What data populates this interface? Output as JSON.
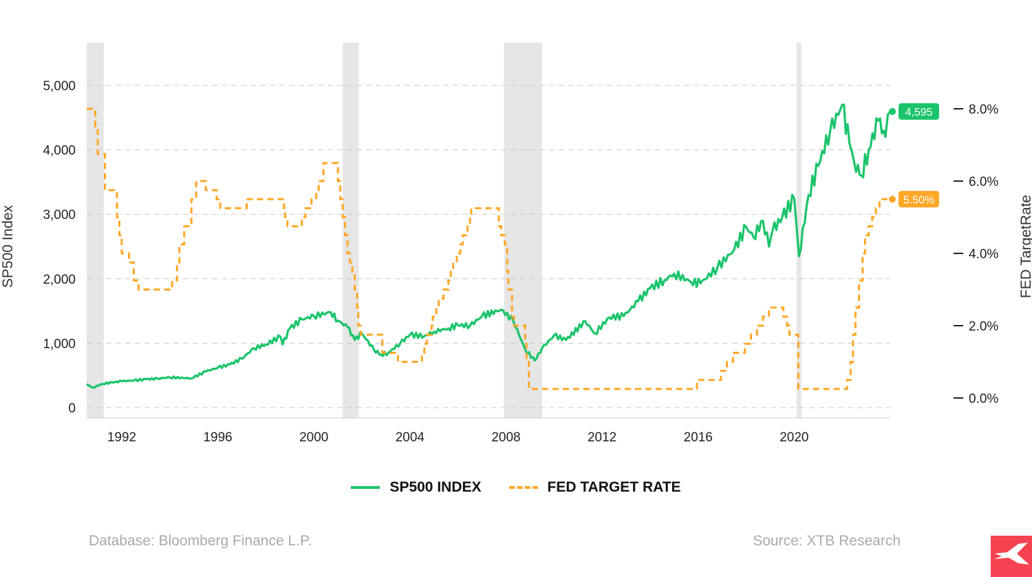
{
  "chart_data": {
    "type": "line",
    "title": "",
    "ylabel_left": "SP500 Index",
    "ylabel_right": "FED TargetRate",
    "left_axis": {
      "range": [
        0,
        5000
      ],
      "ticks": [
        0,
        1000,
        2000,
        3000,
        4000,
        5000
      ],
      "tick_labels": [
        "0",
        "1,000",
        "2,000",
        "3,000",
        "4,000",
        "5,000"
      ]
    },
    "right_axis": {
      "range": [
        0,
        8
      ],
      "ticks": [
        0,
        2,
        4,
        6,
        8
      ],
      "tick_labels": [
        "0.0%",
        "2.0%",
        "4.0%",
        "6.0%",
        "8.0%"
      ]
    },
    "x_axis": {
      "range": [
        1990.54,
        2024.0
      ],
      "ticks": [
        1992,
        1996,
        2000,
        2004,
        2008,
        2012,
        2016,
        2020
      ],
      "tick_labels": [
        "1992",
        "1996",
        "2000",
        "2004",
        "2008",
        "2012",
        "2016",
        "2020"
      ]
    },
    "grid": "horizontal dashed",
    "legend_placement": "bottom",
    "recessions": [
      [
        1990.54,
        1991.25
      ],
      [
        2001.2,
        2001.87
      ],
      [
        2007.92,
        2009.5
      ],
      [
        2020.1,
        2020.3
      ]
    ],
    "series": [
      {
        "name": "SP500 INDEX",
        "axis": "left",
        "color": "#1bc46b",
        "style": "solid",
        "last_label": "4,595",
        "points": [
          [
            1990.54,
            360
          ],
          [
            1990.8,
            310
          ],
          [
            1991.2,
            370
          ],
          [
            1991.6,
            390
          ],
          [
            1992,
            410
          ],
          [
            1992.5,
            420
          ],
          [
            1993,
            440
          ],
          [
            1993.5,
            450
          ],
          [
            1994,
            470
          ],
          [
            1994.9,
            455
          ],
          [
            1995.5,
            560
          ],
          [
            1996,
            620
          ],
          [
            1996.5,
            670
          ],
          [
            1997,
            760
          ],
          [
            1997.5,
            920
          ],
          [
            1998,
            980
          ],
          [
            1998.6,
            1100
          ],
          [
            1998.7,
            980
          ],
          [
            1999,
            1230
          ],
          [
            1999.5,
            1370
          ],
          [
            2000,
            1420
          ],
          [
            2000.7,
            1480
          ],
          [
            2001,
            1350
          ],
          [
            2001.4,
            1250
          ],
          [
            2001.7,
            1050
          ],
          [
            2002,
            1150
          ],
          [
            2002.5,
            900
          ],
          [
            2002.8,
            820
          ],
          [
            2003.1,
            850
          ],
          [
            2003.6,
            1000
          ],
          [
            2004,
            1130
          ],
          [
            2004.6,
            1110
          ],
          [
            2005,
            1180
          ],
          [
            2005.6,
            1230
          ],
          [
            2006,
            1280
          ],
          [
            2006.5,
            1270
          ],
          [
            2007,
            1420
          ],
          [
            2007.8,
            1520
          ],
          [
            2008.3,
            1350
          ],
          [
            2008.8,
            900
          ],
          [
            2009.2,
            730
          ],
          [
            2009.5,
            920
          ],
          [
            2010,
            1120
          ],
          [
            2010.5,
            1050
          ],
          [
            2011.3,
            1340
          ],
          [
            2011.7,
            1150
          ],
          [
            2012.3,
            1400
          ],
          [
            2012.9,
            1420
          ],
          [
            2013.5,
            1650
          ],
          [
            2014,
            1850
          ],
          [
            2014.6,
            1980
          ],
          [
            2015,
            2080
          ],
          [
            2015.7,
            1950
          ],
          [
            2016.1,
            1930
          ],
          [
            2016.8,
            2170
          ],
          [
            2017.5,
            2450
          ],
          [
            2018,
            2800
          ],
          [
            2018.3,
            2650
          ],
          [
            2018.7,
            2900
          ],
          [
            2018.95,
            2500
          ],
          [
            2019.1,
            2750
          ],
          [
            2019.5,
            2950
          ],
          [
            2020,
            3250
          ],
          [
            2020.2,
            2350
          ],
          [
            2020.6,
            3300
          ],
          [
            2021,
            3750
          ],
          [
            2021.5,
            4300
          ],
          [
            2022,
            4700
          ],
          [
            2022.3,
            4100
          ],
          [
            2022.5,
            3800
          ],
          [
            2022.8,
            3600
          ],
          [
            2023.1,
            4000
          ],
          [
            2023.5,
            4450
          ],
          [
            2023.8,
            4200
          ],
          [
            2024.0,
            4595
          ]
        ]
      },
      {
        "name": "FED TARGET RATE",
        "axis": "right",
        "color": "#ffa726",
        "style": "dashed-step",
        "last_label": "5.50%",
        "points": [
          [
            1990.54,
            8.0
          ],
          [
            1990.9,
            7.5
          ],
          [
            1991.0,
            6.75
          ],
          [
            1991.3,
            5.75
          ],
          [
            1991.8,
            5.0
          ],
          [
            1991.9,
            4.5
          ],
          [
            1992.0,
            4.0
          ],
          [
            1992.3,
            3.75
          ],
          [
            1992.5,
            3.25
          ],
          [
            1992.7,
            3.0
          ],
          [
            1994.1,
            3.25
          ],
          [
            1994.3,
            3.75
          ],
          [
            1994.4,
            4.25
          ],
          [
            1994.6,
            4.75
          ],
          [
            1994.9,
            5.5
          ],
          [
            1995.1,
            6.0
          ],
          [
            1995.5,
            5.75
          ],
          [
            1995.95,
            5.5
          ],
          [
            1996.1,
            5.25
          ],
          [
            1997.2,
            5.5
          ],
          [
            1998.75,
            5.25
          ],
          [
            1998.8,
            5.0
          ],
          [
            1998.9,
            4.75
          ],
          [
            1999.5,
            5.0
          ],
          [
            1999.65,
            5.25
          ],
          [
            1999.9,
            5.5
          ],
          [
            2000.1,
            5.75
          ],
          [
            2000.2,
            6.0
          ],
          [
            2000.4,
            6.5
          ],
          [
            2001.0,
            6.0
          ],
          [
            2001.1,
            5.5
          ],
          [
            2001.2,
            5.0
          ],
          [
            2001.3,
            4.5
          ],
          [
            2001.4,
            4.0
          ],
          [
            2001.5,
            3.75
          ],
          [
            2001.6,
            3.5
          ],
          [
            2001.7,
            3.0
          ],
          [
            2001.8,
            2.5
          ],
          [
            2001.85,
            2.0
          ],
          [
            2001.95,
            1.75
          ],
          [
            2002.85,
            1.25
          ],
          [
            2003.5,
            1.0
          ],
          [
            2004.5,
            1.25
          ],
          [
            2004.6,
            1.5
          ],
          [
            2004.7,
            1.75
          ],
          [
            2004.9,
            2.0
          ],
          [
            2004.95,
            2.25
          ],
          [
            2005.1,
            2.5
          ],
          [
            2005.2,
            2.75
          ],
          [
            2005.4,
            3.0
          ],
          [
            2005.6,
            3.25
          ],
          [
            2005.7,
            3.5
          ],
          [
            2005.8,
            3.75
          ],
          [
            2005.95,
            4.0
          ],
          [
            2006.1,
            4.25
          ],
          [
            2006.2,
            4.5
          ],
          [
            2006.4,
            4.75
          ],
          [
            2006.5,
            5.0
          ],
          [
            2006.55,
            5.25
          ],
          [
            2007.7,
            4.75
          ],
          [
            2007.8,
            4.5
          ],
          [
            2007.95,
            4.25
          ],
          [
            2008.05,
            3.5
          ],
          [
            2008.1,
            3.0
          ],
          [
            2008.25,
            2.25
          ],
          [
            2008.33,
            2.0
          ],
          [
            2008.8,
            1.5
          ],
          [
            2008.85,
            1.0
          ],
          [
            2008.95,
            0.25
          ],
          [
            2015.95,
            0.5
          ],
          [
            2016.95,
            0.75
          ],
          [
            2017.2,
            1.0
          ],
          [
            2017.45,
            1.25
          ],
          [
            2017.95,
            1.5
          ],
          [
            2018.2,
            1.75
          ],
          [
            2018.45,
            2.0
          ],
          [
            2018.7,
            2.25
          ],
          [
            2018.95,
            2.5
          ],
          [
            2019.55,
            2.25
          ],
          [
            2019.7,
            2.0
          ],
          [
            2019.8,
            1.75
          ],
          [
            2020.17,
            0.25
          ],
          [
            2022.2,
            0.5
          ],
          [
            2022.35,
            1.0
          ],
          [
            2022.45,
            1.75
          ],
          [
            2022.55,
            2.5
          ],
          [
            2022.7,
            3.25
          ],
          [
            2022.85,
            4.0
          ],
          [
            2022.95,
            4.5
          ],
          [
            2023.1,
            4.75
          ],
          [
            2023.25,
            5.0
          ],
          [
            2023.4,
            5.25
          ],
          [
            2023.55,
            5.5
          ],
          [
            2024.0,
            5.5
          ]
        ]
      }
    ]
  },
  "footer": {
    "database": "Database: Bloomberg Finance L.P.",
    "source": "Source: XTB Research"
  },
  "logo": {
    "text": "XTB",
    "color": "#f64250"
  }
}
